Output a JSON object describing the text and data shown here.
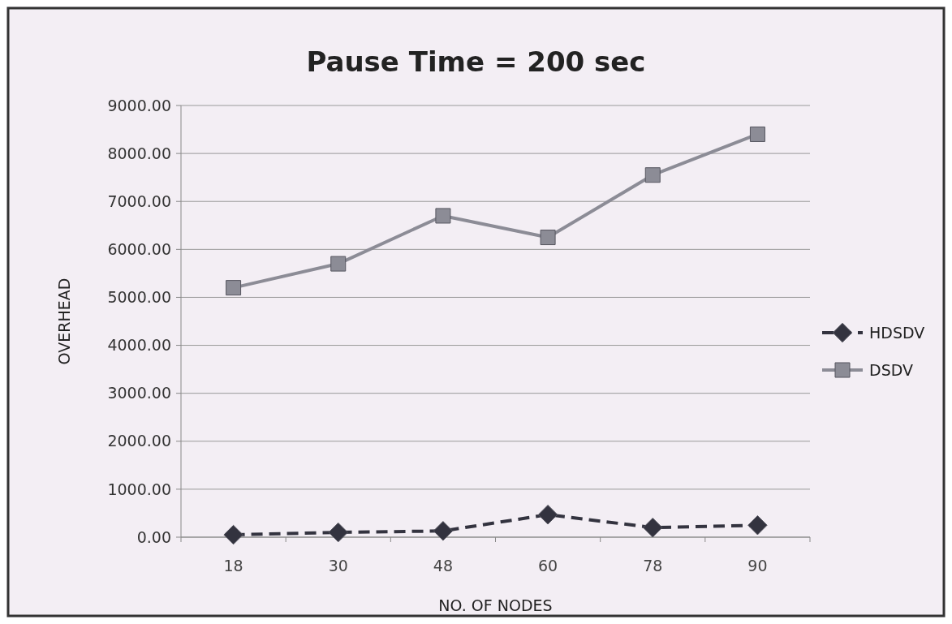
{
  "chart_data": {
    "type": "line",
    "title": "Pause Time = 200 sec",
    "xlabel": "NO. OF NODES",
    "ylabel": "OVERHEAD",
    "categories": [
      "18",
      "30",
      "48",
      "60",
      "78",
      "90"
    ],
    "series": [
      {
        "name": "HDSDV",
        "color": "#33333f",
        "values": [
          50,
          100,
          130,
          470,
          200,
          250
        ],
        "marker": "diamond",
        "line_style": "dashed"
      },
      {
        "name": "DSDV",
        "color": "#8c8c96",
        "values": [
          5200,
          5700,
          6700,
          6250,
          7550,
          8400
        ],
        "marker": "square",
        "line_style": "solid"
      }
    ],
    "ylim": [
      0,
      9000
    ],
    "yticks": [
      {
        "value": 0,
        "label": "0.00"
      },
      {
        "value": 1000,
        "label": "1000.00"
      },
      {
        "value": 2000,
        "label": "2000.00"
      },
      {
        "value": 3000,
        "label": "3000.00"
      },
      {
        "value": 4000,
        "label": "4000.00"
      },
      {
        "value": 5000,
        "label": "5000.00"
      },
      {
        "value": 6000,
        "label": "6000.00"
      },
      {
        "value": 7000,
        "label": "7000.00"
      },
      {
        "value": 8000,
        "label": "8000.00"
      },
      {
        "value": 9000,
        "label": "9000.00"
      }
    ],
    "grid": "y",
    "legend": "right"
  }
}
